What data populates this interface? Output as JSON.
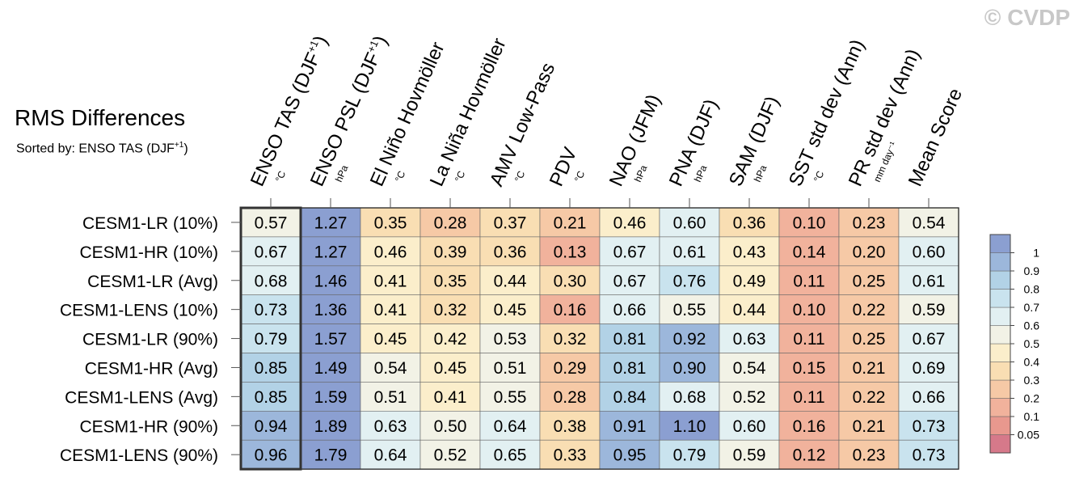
{
  "header": {
    "title": "RMS Differences",
    "subtitle_prefix": "Sorted by: ENSO TAS (DJF",
    "subtitle_sup": "+1",
    "subtitle_suffix": ")",
    "watermark": "© CVDP"
  },
  "chart_data": {
    "type": "heatmap",
    "columns": [
      {
        "label": "ENSO TAS (DJF",
        "sup": "+1",
        "tail": ")",
        "unit": "°C"
      },
      {
        "label": "ENSO PSL (DJF",
        "sup": "+1",
        "tail": ")",
        "unit": "hPa"
      },
      {
        "label": "El Niño Hovmöller",
        "sup": "",
        "tail": "",
        "unit": "°C"
      },
      {
        "label": "La Niña Hovmöller",
        "sup": "",
        "tail": "",
        "unit": "°C"
      },
      {
        "label": "AMV Low-Pass",
        "sup": "",
        "tail": "",
        "unit": "°C"
      },
      {
        "label": "PDV",
        "sup": "",
        "tail": "",
        "unit": "°C"
      },
      {
        "label": "NAO (JFM)",
        "sup": "",
        "tail": "",
        "unit": "hPa"
      },
      {
        "label": "PNA (DJF)",
        "sup": "",
        "tail": "",
        "unit": "hPa"
      },
      {
        "label": "SAM (DJF)",
        "sup": "",
        "tail": "",
        "unit": "hPa"
      },
      {
        "label": "SST std dev (Ann)",
        "sup": "",
        "tail": "",
        "unit": "°C"
      },
      {
        "label": "PR std dev (Ann)",
        "sup": "",
        "tail": "",
        "unit": "mm day⁻¹"
      },
      {
        "label": "Mean Score",
        "sup": "",
        "tail": "",
        "unit": ""
      }
    ],
    "rows": [
      "CESM1-LR (10%)",
      "CESM1-HR (10%)",
      "CESM1-LR (Avg)",
      "CESM1-LENS (10%)",
      "CESM1-LR (90%)",
      "CESM1-HR (Avg)",
      "CESM1-LENS (Avg)",
      "CESM1-HR (90%)",
      "CESM1-LENS (90%)"
    ],
    "values": [
      [
        "0.57",
        "1.27",
        "0.35",
        "0.28",
        "0.37",
        "0.21",
        "0.46",
        "0.60",
        "0.36",
        "0.10",
        "0.23",
        "0.54"
      ],
      [
        "0.67",
        "1.27",
        "0.46",
        "0.39",
        "0.36",
        "0.13",
        "0.67",
        "0.61",
        "0.43",
        "0.14",
        "0.20",
        "0.60"
      ],
      [
        "0.68",
        "1.46",
        "0.41",
        "0.35",
        "0.44",
        "0.30",
        "0.67",
        "0.76",
        "0.49",
        "0.11",
        "0.25",
        "0.61"
      ],
      [
        "0.73",
        "1.36",
        "0.41",
        "0.32",
        "0.45",
        "0.16",
        "0.66",
        "0.55",
        "0.44",
        "0.10",
        "0.22",
        "0.59"
      ],
      [
        "0.79",
        "1.57",
        "0.45",
        "0.42",
        "0.53",
        "0.32",
        "0.81",
        "0.92",
        "0.63",
        "0.11",
        "0.25",
        "0.67"
      ],
      [
        "0.85",
        "1.49",
        "0.54",
        "0.45",
        "0.51",
        "0.29",
        "0.81",
        "0.90",
        "0.54",
        "0.15",
        "0.21",
        "0.69"
      ],
      [
        "0.85",
        "1.59",
        "0.51",
        "0.41",
        "0.55",
        "0.28",
        "0.84",
        "0.68",
        "0.52",
        "0.11",
        "0.22",
        "0.66"
      ],
      [
        "0.94",
        "1.89",
        "0.63",
        "0.50",
        "0.64",
        "0.38",
        "0.91",
        "1.10",
        "0.60",
        "0.16",
        "0.21",
        "0.73"
      ],
      [
        "0.96",
        "1.79",
        "0.64",
        "0.52",
        "0.65",
        "0.33",
        "0.95",
        "0.79",
        "0.59",
        "0.12",
        "0.23",
        "0.73"
      ]
    ],
    "sorted_column": 0,
    "colorbar": {
      "labels": [
        "1",
        "0.9",
        "0.8",
        "0.7",
        "0.6",
        "0.5",
        "0.4",
        "0.3",
        "0.2",
        "0.1",
        "0.05"
      ],
      "bounds": [
        0.05,
        0.1,
        0.2,
        0.3,
        0.4,
        0.5,
        0.6,
        0.7,
        0.8,
        0.9,
        1.0
      ],
      "colors": [
        "#d6798a",
        "#e8988e",
        "#f1b29c",
        "#f6c9a6",
        "#f9deb3",
        "#fbeecb",
        "#f2f2e6",
        "#e2f0f2",
        "#c9e3ee",
        "#b2d2e6",
        "#9cb7db",
        "#8b9fd1"
      ]
    }
  }
}
